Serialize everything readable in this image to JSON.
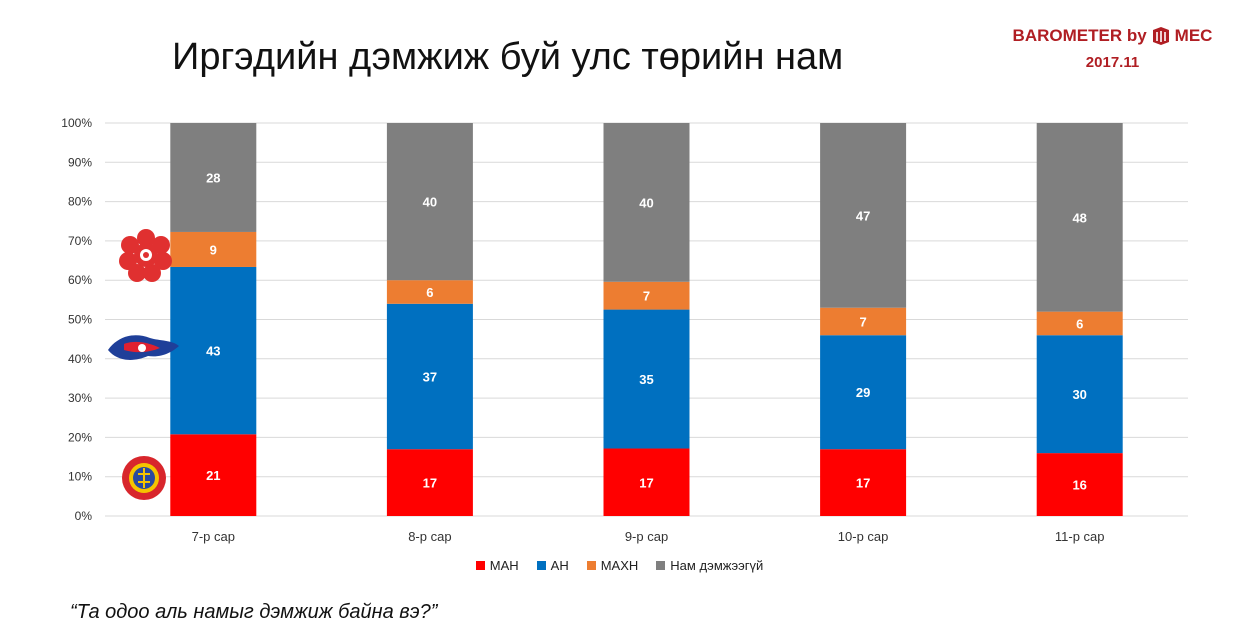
{
  "header": {
    "title": "Иргэдийн дэмжиж буй улс төрийн нам",
    "brand": "BAROMETER by",
    "brand_suffix": "MEC",
    "brand_date": "2017.11",
    "brand_color": "#b01e23"
  },
  "footer": {
    "question": "“Та одоо аль намыг дэмжиж байна вэ?”"
  },
  "emblems": [
    "red-flower-emblem-icon",
    "blue-party-emblem-icon",
    "soyombo-emblem-icon"
  ],
  "chart_data": {
    "type": "bar",
    "stacked": true,
    "categories": [
      "7-р сар",
      "8-р сар",
      "9-р сар",
      "10-р сар",
      "11-р сар"
    ],
    "series": [
      {
        "name": "МАН",
        "color": "#ff0000",
        "values": [
          21,
          17,
          17,
          17,
          16
        ]
      },
      {
        "name": "АН",
        "color": "#0070c0",
        "values": [
          43,
          37,
          35,
          29,
          30
        ]
      },
      {
        "name": "МАХН",
        "color": "#ed7d31",
        "values": [
          9,
          6,
          7,
          7,
          6
        ]
      },
      {
        "name": "Нам дэмжээгүй",
        "color": "#7f7f7f",
        "values": [
          28,
          40,
          40,
          47,
          48
        ]
      }
    ],
    "yticks": [
      "0%",
      "10%",
      "20%",
      "30%",
      "40%",
      "50%",
      "60%",
      "70%",
      "80%",
      "90%",
      "100%"
    ],
    "ylim": [
      0,
      100
    ],
    "grid": true,
    "legend_position": "bottom"
  }
}
